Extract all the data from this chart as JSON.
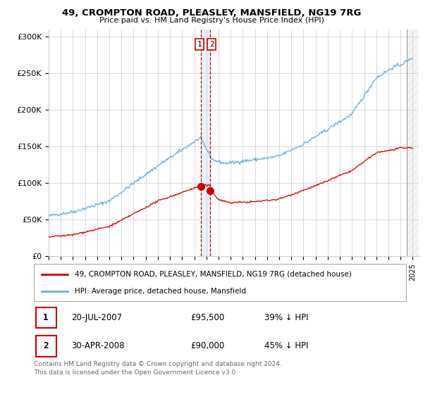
{
  "title": "49, CROMPTON ROAD, PLEASLEY, MANSFIELD, NG19 7RG",
  "subtitle": "Price paid vs. HM Land Registry's House Price Index (HPI)",
  "ylabel_ticks": [
    "£0",
    "£50K",
    "£100K",
    "£150K",
    "£200K",
    "£250K",
    "£300K"
  ],
  "ytick_values": [
    0,
    50000,
    100000,
    150000,
    200000,
    250000,
    300000
  ],
  "ylim": [
    0,
    310000
  ],
  "xlim_start": 1995.0,
  "xlim_end": 2025.5,
  "hpi_color": "#6aaed6",
  "price_color": "#cc0000",
  "sale1_date": 2007.55,
  "sale1_price": 95500,
  "sale2_date": 2008.33,
  "sale2_price": 90000,
  "legend_label1": "49, CROMPTON ROAD, PLEASLEY, MANSFIELD, NG19 7RG (detached house)",
  "legend_label2": "HPI: Average price, detached house, Mansfield",
  "table_row1": [
    "1",
    "20-JUL-2007",
    "£95,500",
    "39% ↓ HPI"
  ],
  "table_row2": [
    "2",
    "30-APR-2008",
    "£90,000",
    "45% ↓ HPI"
  ],
  "footer": "Contains HM Land Registry data © Crown copyright and database right 2024.\nThis data is licensed under the Open Government Licence v3.0.",
  "background_color": "#ffffff",
  "grid_color": "#cccccc"
}
